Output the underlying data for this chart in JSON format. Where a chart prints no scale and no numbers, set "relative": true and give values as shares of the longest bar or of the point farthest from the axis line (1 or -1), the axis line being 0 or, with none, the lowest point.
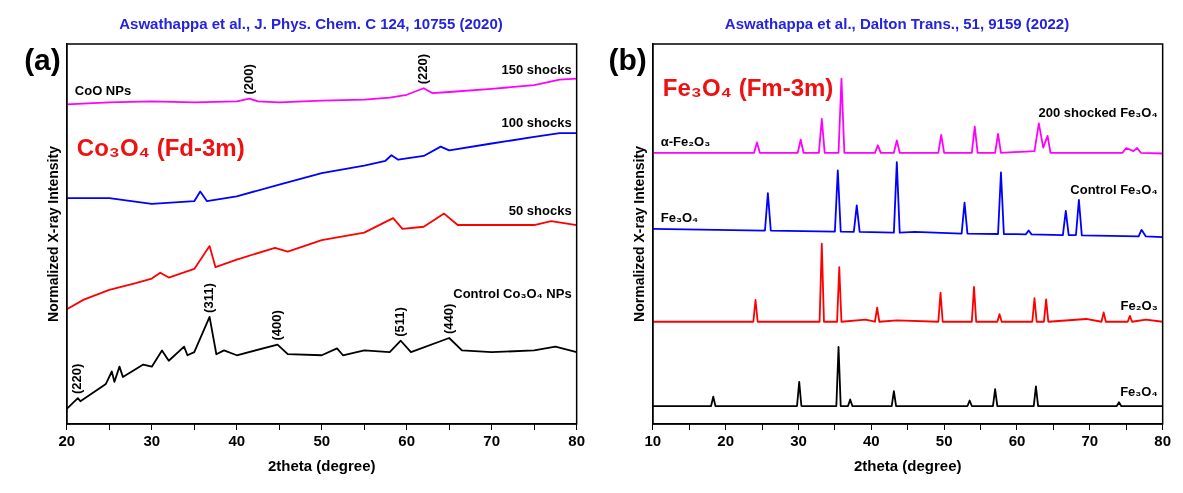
{
  "chart_data": [
    {
      "type": "line",
      "title": "Aswathappa et al., J. Phys. Chem. C 124, 10755 (2020)",
      "xlabel": "2theta (degree)",
      "ylabel": "Normalized X-ray Intensity",
      "relative": true,
      "marker": "none",
      "line_style": "solid",
      "tick_labels": "x",
      "xlim": [
        20,
        80
      ],
      "xticks": [
        20,
        {
          "value": 25,
          "label": null
        },
        30,
        {
          "value": 35,
          "label": null
        },
        40,
        {
          "value": 45,
          "label": null
        },
        50,
        {
          "value": 55,
          "label": null
        },
        60,
        {
          "value": 65,
          "label": null
        },
        70,
        {
          "value": 75,
          "label": null
        },
        80
      ],
      "annotations": [
        "(a)",
        "Co₃O₄ (Fd-3m)",
        "CoO NPs",
        {
          "text": "(200)",
          "x": 41.5,
          "y": 0.942
        },
        {
          "text": "(220)",
          "x": 62,
          "y": 0.972
        },
        {
          "text": "(311)",
          "x": 36.8,
          "y": 0.31
        },
        {
          "text": "(400)",
          "x": 44.8,
          "y": 0.23
        },
        {
          "text": "(511)",
          "x": 59.3,
          "y": 0.241
        },
        {
          "text": "(440)",
          "x": 65,
          "y": 0.249
        },
        {
          "text": "(220)",
          "x": 21.3,
          "y": 0.075
        }
      ],
      "series": [
        {
          "name": "150 shocks",
          "color": "#ff00ff",
          "x": [
            20,
            25,
            30,
            35,
            40,
            41.5,
            42.5,
            45,
            50,
            55,
            58,
            60,
            62,
            63,
            65,
            70,
            75,
            78,
            80
          ],
          "values": [
            0.925,
            0.931,
            0.934,
            0.931,
            0.934,
            0.942,
            0.934,
            0.931,
            0.936,
            0.939,
            0.945,
            0.953,
            0.972,
            0.958,
            0.961,
            0.97,
            0.981,
            0.997,
            1
          ]
        },
        {
          "name": "100 shocks",
          "color": "#0000ff",
          "x": [
            20,
            25,
            30,
            35,
            35.7,
            36.5,
            40,
            45,
            50,
            55,
            57.5,
            58.2,
            59,
            62,
            64,
            65,
            70,
            75,
            78,
            80
          ],
          "values": [
            0.654,
            0.654,
            0.637,
            0.645,
            0.673,
            0.645,
            0.659,
            0.693,
            0.726,
            0.748,
            0.762,
            0.778,
            0.765,
            0.776,
            0.803,
            0.792,
            0.812,
            0.831,
            0.842,
            0.842
          ]
        },
        {
          "name": "50 shocks",
          "color": "#ff0000",
          "x": [
            20,
            22,
            25,
            28,
            30,
            31,
            32,
            35,
            36.8,
            37.5,
            40,
            44.5,
            46,
            50,
            55,
            58.4,
            59.5,
            62,
            64.4,
            66,
            70,
            75,
            77,
            80
          ],
          "values": [
            0.332,
            0.36,
            0.388,
            0.407,
            0.421,
            0.438,
            0.424,
            0.449,
            0.515,
            0.454,
            0.476,
            0.51,
            0.499,
            0.532,
            0.554,
            0.596,
            0.565,
            0.571,
            0.609,
            0.576,
            0.576,
            0.576,
            0.587,
            0.576
          ]
        },
        {
          "name": "Control Co₃O₄ NPs",
          "color": "#000000",
          "x": [
            20,
            21.3,
            21.6,
            24.6,
            25.3,
            25.6,
            26.2,
            26.6,
            29,
            30,
            31.2,
            32,
            33.8,
            34.2,
            35,
            36.8,
            37.6,
            38.5,
            40,
            44.8,
            46,
            50,
            51.8,
            52.5,
            55,
            58,
            59.3,
            60.5,
            65,
            66.5,
            70,
            75,
            77.5,
            80
          ],
          "values": [
            0.044,
            0.075,
            0.066,
            0.116,
            0.152,
            0.122,
            0.166,
            0.136,
            0.172,
            0.166,
            0.213,
            0.183,
            0.224,
            0.199,
            0.208,
            0.31,
            0.202,
            0.213,
            0.199,
            0.23,
            0.202,
            0.199,
            0.219,
            0.199,
            0.213,
            0.208,
            0.241,
            0.208,
            0.249,
            0.213,
            0.208,
            0.213,
            0.224,
            0.208
          ]
        }
      ]
    },
    {
      "type": "line",
      "title": "Aswathappa et al., Dalton Trans., 51, 9159 (2022)",
      "xlabel": "2theta (degree)",
      "ylabel": "Normalized X-ray Intensity",
      "relative": true,
      "marker": "none",
      "line_style": "solid",
      "tick_labels": "x",
      "xlim": [
        10,
        80
      ],
      "xticks": [
        10,
        {
          "value": 15,
          "label": null
        },
        20,
        {
          "value": 25,
          "label": null
        },
        30,
        {
          "value": 35,
          "label": null
        },
        40,
        {
          "value": 45,
          "label": null
        },
        50,
        {
          "value": 55,
          "label": null
        },
        60,
        {
          "value": 65,
          "label": null
        },
        70,
        {
          "value": 75,
          "label": null
        },
        80
      ],
      "annotations": [
        "(b)",
        "Fe₃O₄ (Fm-3m)",
        "α-Fe₂O₃",
        "Fe₃O₄"
      ],
      "series": [
        {
          "name": "200 shocked Fe₃O₄",
          "color": "#ff00ff",
          "x": [
            10,
            23.9,
            24.3,
            24.7,
            29.9,
            30.3,
            30.7,
            32.8,
            33.2,
            33.6,
            35.5,
            35.9,
            36.3,
            40.5,
            40.9,
            41.3,
            43.1,
            43.5,
            43.9,
            49.2,
            49.6,
            50,
            53.8,
            54.2,
            54.6,
            57,
            57.4,
            57.8,
            62.4,
            63,
            63.6,
            64.2,
            64.6,
            74.5,
            75,
            76,
            76.5,
            77,
            80
          ],
          "values": [
            0.785,
            0.785,
            0.815,
            0.785,
            0.785,
            0.823,
            0.785,
            0.785,
            0.883,
            0.785,
            0.785,
            1,
            0.785,
            0.785,
            0.807,
            0.785,
            0.785,
            0.821,
            0.785,
            0.785,
            0.837,
            0.785,
            0.785,
            0.861,
            0.785,
            0.785,
            0.84,
            0.785,
            0.79,
            0.87,
            0.8,
            0.834,
            0.785,
            0.785,
            0.799,
            0.79,
            0.799,
            0.785,
            0.783
          ]
        },
        {
          "name": "Control Fe₃O₄",
          "color": "#0000ff",
          "x": [
            10,
            25.4,
            25.8,
            26.2,
            35,
            35.4,
            35.8,
            37.6,
            38,
            38.4,
            43.1,
            43.5,
            43.9,
            46,
            52.4,
            52.8,
            53.2,
            57.4,
            57.8,
            58.2,
            61.2,
            61.6,
            62,
            66.3,
            66.7,
            67.1,
            68.1,
            68.5,
            68.9,
            76.7,
            77.1,
            77.7,
            80
          ],
          "values": [
            0.565,
            0.56,
            0.668,
            0.56,
            0.557,
            0.734,
            0.557,
            0.556,
            0.633,
            0.556,
            0.554,
            0.758,
            0.554,
            0.556,
            0.551,
            0.641,
            0.551,
            0.55,
            0.728,
            0.55,
            0.549,
            0.56,
            0.549,
            0.547,
            0.617,
            0.547,
            0.547,
            0.649,
            0.546,
            0.543,
            0.562,
            0.543,
            0.541
          ]
        },
        {
          "name": "Fe₂O₃",
          "color": "#ff0000",
          "x": [
            10,
            23.8,
            24.1,
            24.4,
            32.9,
            33.2,
            33.5,
            35.3,
            35.6,
            35.9,
            39.2,
            40.5,
            40.8,
            41.1,
            43.5,
            49.2,
            49.5,
            49.8,
            53.8,
            54.1,
            54.4,
            57.3,
            57.6,
            57.9,
            62.1,
            62.4,
            62.7,
            63.7,
            64,
            64.3,
            69.5,
            71.6,
            71.9,
            72.2,
            75.2,
            75.5,
            75.8,
            77.7,
            80
          ],
          "values": [
            0.296,
            0.296,
            0.359,
            0.296,
            0.296,
            0.522,
            0.296,
            0.296,
            0.454,
            0.296,
            0.302,
            0.296,
            0.337,
            0.296,
            0.3,
            0.296,
            0.38,
            0.296,
            0.296,
            0.397,
            0.296,
            0.296,
            0.318,
            0.296,
            0.296,
            0.364,
            0.296,
            0.296,
            0.361,
            0.296,
            0.304,
            0.296,
            0.323,
            0.296,
            0.296,
            0.313,
            0.296,
            0.302,
            0.296
          ]
        },
        {
          "name": "Fe₃O₄",
          "color": "#000000",
          "x": [
            10,
            18,
            18.3,
            18.6,
            29.8,
            30.1,
            30.4,
            35.2,
            35.5,
            35.8,
            36.8,
            37.1,
            37.4,
            42.8,
            43.1,
            43.4,
            53.2,
            53.5,
            53.8,
            56.7,
            57,
            57.3,
            62.3,
            62.6,
            62.9,
            73.7,
            74,
            74.3,
            80
          ],
          "values": [
            0.052,
            0.052,
            0.079,
            0.052,
            0.052,
            0.122,
            0.052,
            0.052,
            0.223,
            0.052,
            0.052,
            0.071,
            0.052,
            0.052,
            0.095,
            0.052,
            0.052,
            0.068,
            0.052,
            0.052,
            0.101,
            0.052,
            0.052,
            0.109,
            0.052,
            0.052,
            0.063,
            0.052,
            0.052
          ]
        }
      ]
    }
  ]
}
